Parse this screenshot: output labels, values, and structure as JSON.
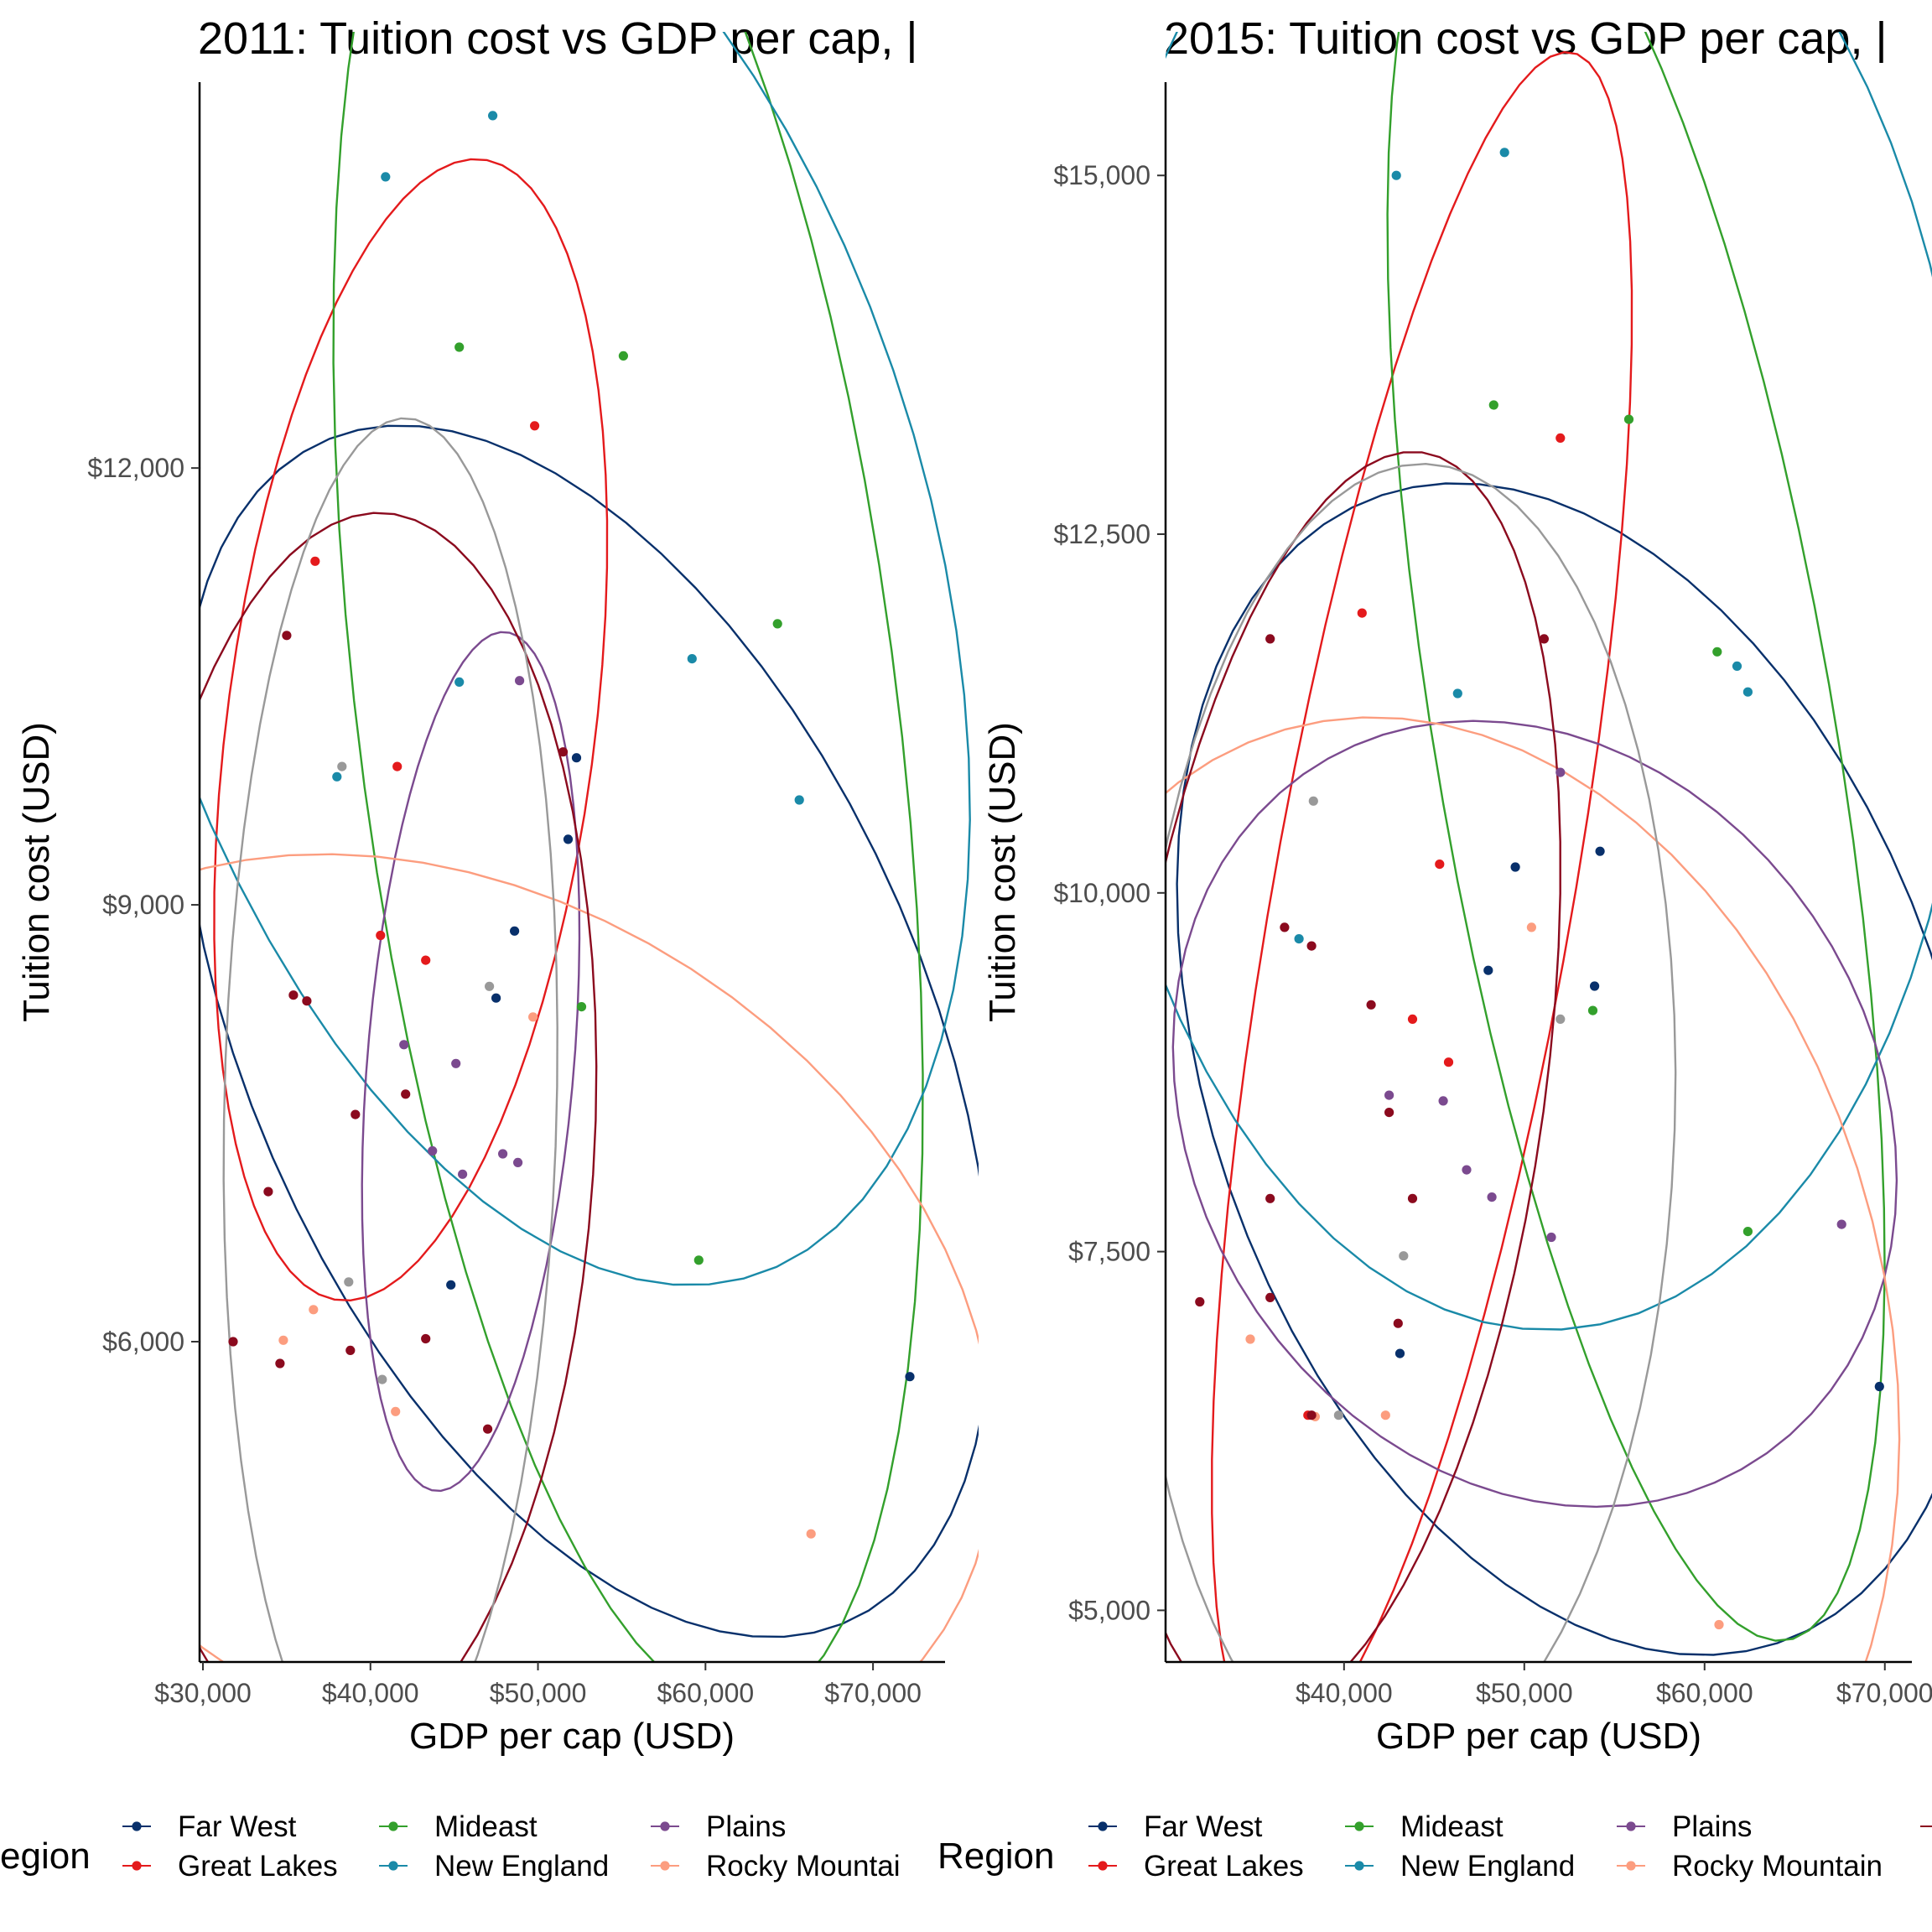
{
  "colors": {
    "Far West": "#08306b",
    "Great Lakes": "#e41a1c",
    "Mideast": "#33a02c",
    "New England": "#1a8aa8",
    "Plains": "#7b4a8f",
    "Rocky Mountain": "#fc9d7f",
    "Southeast": "#8b0a1e",
    "Southwest": "#999999"
  },
  "chart_data": [
    {
      "type": "scatter",
      "title": "2011: Tuition cost vs GDP per cap, |",
      "xlabel": "GDP per cap (USD)",
      "ylabel": "Tuition cost (USD)",
      "xlim": [
        29800,
        74300
      ],
      "ylim": [
        3800,
        14650
      ],
      "xticks": [
        30000,
        40000,
        50000,
        60000,
        70000
      ],
      "xtick_labels": [
        "$30,000",
        "$40,000",
        "$50,000",
        "$60,000",
        "$70,000"
      ],
      "yticks": [
        6000,
        9000,
        12000
      ],
      "ytick_labels": [
        "$6,000",
        "$9,000",
        "$12,000"
      ],
      "legend_title": "egion",
      "legend_entries": [
        "Far West",
        "Great Lakes",
        "Mideast",
        "New England",
        "Plains",
        "Rocky Mountai"
      ],
      "legend_position": "bottom",
      "series": [
        {
          "region": "Far West",
          "x": [
            72200,
            52300,
            51800,
            48600,
            47500,
            44800
          ],
          "y": [
            5760,
            10010,
            9450,
            8820,
            8360,
            6390
          ]
        },
        {
          "region": "Great Lakes",
          "x": [
            36700,
            41600,
            40600,
            43300,
            49800
          ],
          "y": [
            11360,
            9950,
            8790,
            8620,
            12290
          ]
        },
        {
          "region": "Mideast",
          "x": [
            45300,
            55100,
            64300,
            52600,
            59600
          ],
          "y": [
            12830,
            12770,
            10930,
            8300,
            6560
          ]
        },
        {
          "region": "New England",
          "x": [
            40900,
            47300,
            45300,
            59200,
            38000,
            65600
          ],
          "y": [
            14000,
            14420,
            10530,
            10690,
            9880,
            9720
          ]
        },
        {
          "region": "Plains",
          "x": [
            48900,
            42000,
            45100,
            43700,
            47900,
            48800,
            45500
          ],
          "y": [
            10540,
            8040,
            7910,
            7310,
            7290,
            7230,
            7150
          ]
        },
        {
          "region": "Rocky Mountain",
          "x": [
            49700,
            36600,
            34800,
            41500,
            66300
          ],
          "y": [
            8230,
            6220,
            6010,
            5520,
            4680
          ]
        },
        {
          "region": "Southeast",
          "x": [
            35000,
            51500,
            35400,
            36200,
            39100,
            42100,
            33900,
            31800,
            34600,
            38800,
            43300,
            47000
          ],
          "y": [
            10850,
            10050,
            8380,
            8340,
            7560,
            7700,
            7030,
            6000,
            5850,
            5940,
            6020,
            5400
          ]
        },
        {
          "region": "Southwest",
          "x": [
            38300,
            47100,
            38700,
            40700
          ],
          "y": [
            9950,
            8440,
            6410,
            5740
          ]
        }
      ],
      "ellipses": [
        {
          "region": "Far West",
          "note": "normal confidence ellipse"
        },
        {
          "region": "Great Lakes"
        },
        {
          "region": "Mideast"
        },
        {
          "region": "New England"
        },
        {
          "region": "Plains"
        },
        {
          "region": "Rocky Mountain"
        },
        {
          "region": "Southeast"
        },
        {
          "region": "Southwest"
        }
      ]
    },
    {
      "type": "scatter",
      "title": "2015: Tuition cost vs GDP per cap, |",
      "xlabel": "GDP per cap (USD)",
      "ylabel": "Tuition cost (USD)",
      "xlim": [
        30100,
        71500
      ],
      "ylim": [
        4640,
        15650
      ],
      "xticks": [
        40000,
        50000,
        60000,
        70000
      ],
      "xtick_labels": [
        "$40,000",
        "$50,000",
        "$60,000",
        "$70,000"
      ],
      "yticks": [
        5000,
        7500,
        10000,
        12500,
        15000
      ],
      "ytick_labels": [
        "$5,000",
        "$7,500",
        "$10,000",
        "$12,500",
        "$15,000"
      ],
      "legend_title": "Region",
      "legend_entries": [
        "Far West",
        "Great Lakes",
        "Mideast",
        "New England",
        "Plains",
        "Rocky Mountain"
      ],
      "legend_position": "bottom",
      "series": [
        {
          "region": "Far West",
          "x": [
            69700,
            54200,
            49500,
            53900,
            48000,
            43100
          ],
          "y": [
            6560,
            10290,
            10180,
            9350,
            9460,
            6790
          ]
        },
        {
          "region": "Great Lakes",
          "x": [
            41000,
            52000,
            45300,
            45800,
            43800,
            38000
          ],
          "y": [
            11950,
            13170,
            10200,
            8820,
            9120,
            6360
          ]
        },
        {
          "region": "Mideast",
          "x": [
            48300,
            55800,
            60700,
            53800,
            62400
          ],
          "y": [
            13400,
            13300,
            11680,
            9180,
            7640
          ]
        },
        {
          "region": "New England",
          "x": [
            42900,
            48900,
            46300,
            61800,
            62400,
            37500
          ],
          "y": [
            15000,
            15160,
            11390,
            11580,
            11400,
            9680
          ]
        },
        {
          "region": "Plains",
          "x": [
            52000,
            42500,
            45500,
            46800,
            48200,
            51500,
            67600
          ],
          "y": [
            10840,
            8590,
            8550,
            8070,
            7880,
            7600,
            7690
          ]
        },
        {
          "region": "Rocky Mountain",
          "x": [
            50400,
            34800,
            38400,
            42300,
            60800
          ],
          "y": [
            9760,
            6890,
            6350,
            6360,
            4900
          ]
        },
        {
          "region": "Southeast",
          "x": [
            35900,
            51100,
            36700,
            38200,
            41500,
            42500,
            35900,
            43800,
            32000,
            35900,
            43000,
            38200
          ],
          "y": [
            11770,
            11770,
            9760,
            9630,
            9220,
            8470,
            7870,
            7870,
            7150,
            7180,
            7000,
            6360
          ]
        },
        {
          "region": "Southwest",
          "x": [
            38300,
            52000,
            43300,
            39700
          ],
          "y": [
            10640,
            9120,
            7470,
            6360
          ]
        }
      ],
      "ellipses": [
        {
          "region": "Far West"
        },
        {
          "region": "Great Lakes"
        },
        {
          "region": "Mideast"
        },
        {
          "region": "New England"
        },
        {
          "region": "Plains"
        },
        {
          "region": "Rocky Mountain"
        },
        {
          "region": "Southeast"
        },
        {
          "region": "Southwest"
        }
      ]
    }
  ]
}
